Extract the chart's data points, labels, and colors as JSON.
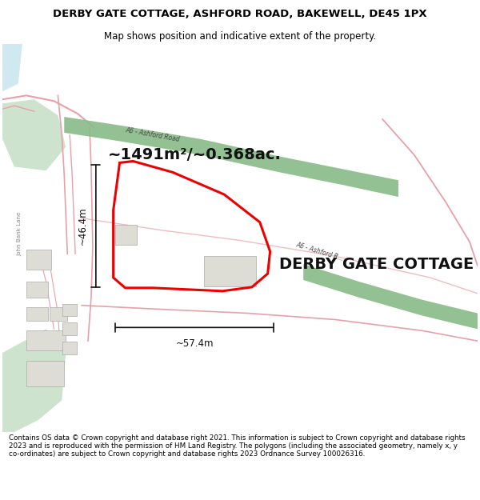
{
  "title_line1": "DERBY GATE COTTAGE, ASHFORD ROAD, BAKEWELL, DE45 1PX",
  "title_line2": "Map shows position and indicative extent of the property.",
  "property_label": "DERBY GATE COTTAGE",
  "area_label": "~1491m²/~0.368ac.",
  "dim_width": "~57.4m",
  "dim_height": "~46.4m",
  "footer_text": "Contains OS data © Crown copyright and database right 2021. This information is subject to Crown copyright and database rights 2023 and is reproduced with the permission of HM Land Registry. The polygons (including the associated geometry, namely x, y co-ordinates) are subject to Crown copyright and database rights 2023 Ordnance Survey 100026316.",
  "road_green_color": "#88bb88",
  "road_pink_color": "#e8a0a8",
  "property_outline_color": "#ee0000",
  "dim_line_color": "#111111",
  "title_bg_color": "#ffffff",
  "footer_bg_color": "#ffffff",
  "map_bg": "#f8f8f5",
  "block_color": "#ddddd5",
  "green_patch_color": "#c5dfc5",
  "title_fontsize": 9.5,
  "subtitle_fontsize": 8.5,
  "footer_fontsize": 6.3,
  "road_label_color": "#444444",
  "dim_fontsize": 8.5,
  "area_fontsize": 14,
  "prop_label_fontsize": 14,
  "john_bank_lane_color": "#888888"
}
